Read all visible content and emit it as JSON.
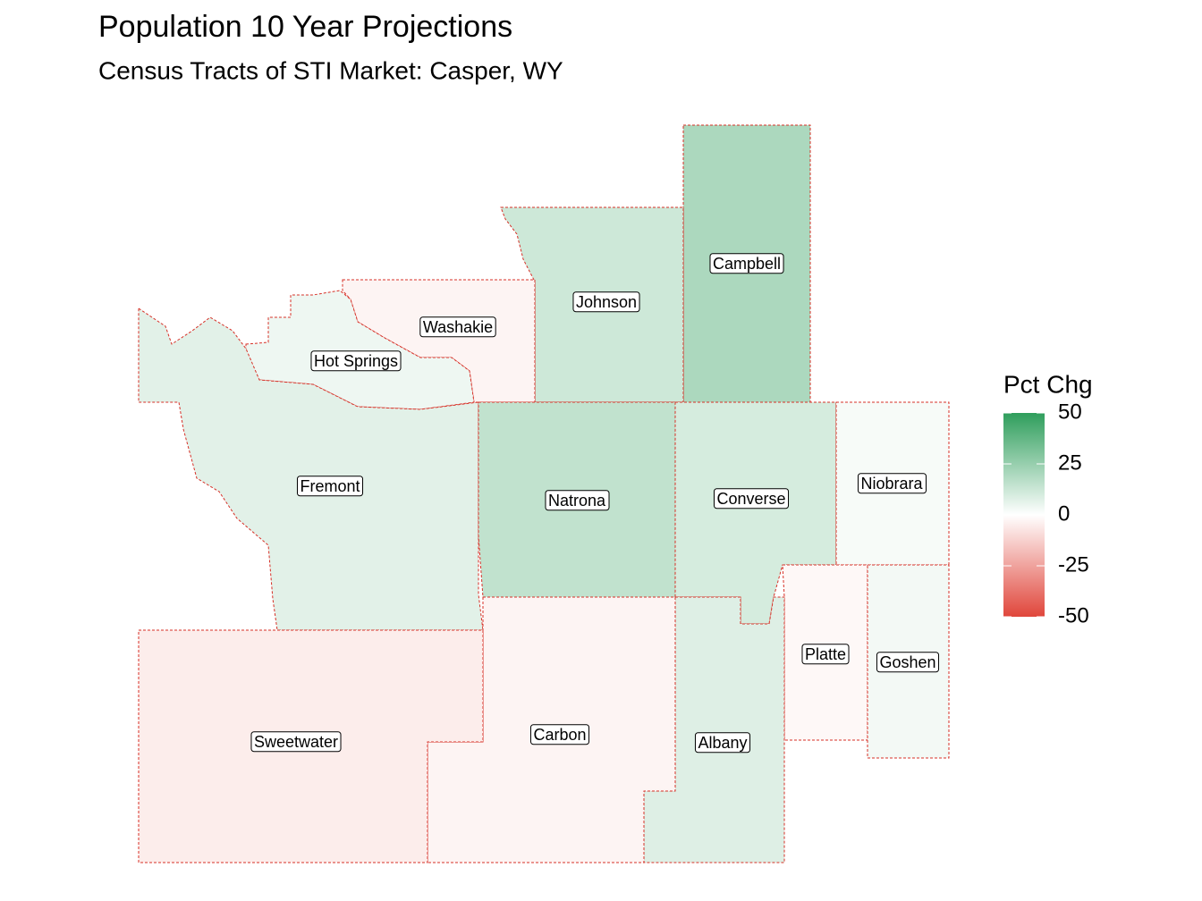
{
  "chart_data": {
    "type": "choropleth",
    "title": "Population 10 Year Projections",
    "subtitle": "Census Tracts of STI Market: Casper, WY",
    "legend_title": "Pct Chg",
    "low_color": "#e0463b",
    "mid_color": "#ffffff",
    "high_color": "#2f9e5c",
    "lim": [
      -50,
      50
    ],
    "ticks": [
      50,
      25,
      0,
      -25,
      -50
    ],
    "regions": [
      {
        "name": "Campbell",
        "value": 20
      },
      {
        "name": "Johnson",
        "value": 12
      },
      {
        "name": "Washakie",
        "value": -3
      },
      {
        "name": "Hot Springs",
        "value": 4
      },
      {
        "name": "Fremont",
        "value": 7
      },
      {
        "name": "Natrona",
        "value": 15
      },
      {
        "name": "Converse",
        "value": 10
      },
      {
        "name": "Niobrara",
        "value": 2
      },
      {
        "name": "Platte",
        "value": -2
      },
      {
        "name": "Goshen",
        "value": 3
      },
      {
        "name": "Albany",
        "value": 8
      },
      {
        "name": "Carbon",
        "value": -3
      },
      {
        "name": "Sweetwater",
        "value": -5
      }
    ]
  }
}
